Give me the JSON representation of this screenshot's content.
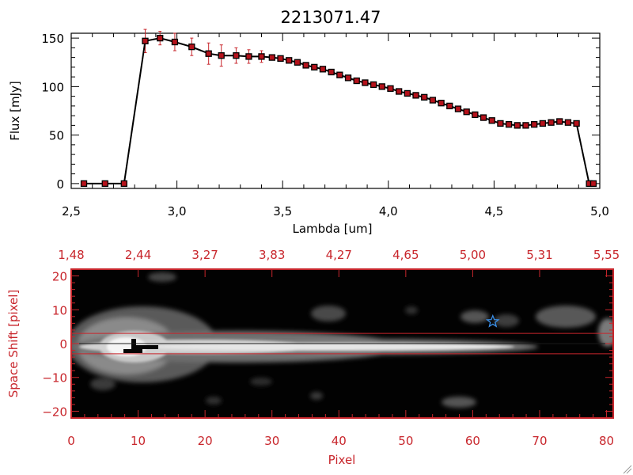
{
  "colors": {
    "axis_red": "#c8262c",
    "point": "#b5121b",
    "line": "#000000",
    "star": "#3a8ee6"
  },
  "chart_data": [
    {
      "type": "line",
      "title": "2213071.47",
      "xlabel": "Lambda [um]",
      "ylabel": "Flux [mJy]",
      "xlim": [
        2.5,
        5.0
      ],
      "ylim": [
        -5,
        155
      ],
      "xticks": [
        2.5,
        3.0,
        3.5,
        4.0,
        4.5,
        5.0
      ],
      "xtick_labels": [
        "2,5",
        "3,0",
        "3,5",
        "4,0",
        "4,5",
        "5,0"
      ],
      "yticks": [
        0,
        50,
        100,
        150
      ],
      "ytick_labels": [
        "0",
        "50",
        "100",
        "150"
      ],
      "grid": false,
      "series": [
        {
          "x": [
            2.56,
            2.66,
            2.75,
            2.85,
            2.92,
            2.99,
            3.07,
            3.15,
            3.21,
            3.28,
            3.34,
            3.4,
            3.45,
            3.49,
            3.53,
            3.57,
            3.61,
            3.65,
            3.69,
            3.73,
            3.77,
            3.81,
            3.85,
            3.89,
            3.93,
            3.97,
            4.01,
            4.05,
            4.09,
            4.13,
            4.17,
            4.21,
            4.25,
            4.29,
            4.33,
            4.37,
            4.41,
            4.45,
            4.49,
            4.53,
            4.57,
            4.61,
            4.65,
            4.69,
            4.73,
            4.77,
            4.81,
            4.85,
            4.89,
            4.95,
            4.97
          ],
          "y": [
            0,
            0,
            0,
            147,
            150,
            146,
            141,
            134,
            132,
            132,
            131,
            131,
            130,
            129,
            127,
            125,
            122,
            120,
            118,
            115,
            112,
            109,
            106,
            104,
            102,
            100,
            98,
            95,
            93,
            91,
            89,
            86,
            83,
            80,
            77,
            74,
            71,
            68,
            65,
            62,
            61,
            60,
            60,
            61,
            62,
            63,
            64,
            63,
            62,
            0,
            0
          ],
          "yerr": [
            0,
            0,
            0,
            12,
            7,
            9,
            9,
            11,
            11,
            8,
            7,
            6,
            2,
            2,
            2,
            2,
            2,
            2,
            2,
            2,
            2,
            2,
            2,
            2,
            2,
            2,
            2,
            2,
            2,
            2,
            2,
            2,
            2,
            2,
            2,
            2,
            2,
            2,
            2,
            2,
            2,
            2,
            2,
            2,
            2,
            2,
            2,
            2,
            2,
            0,
            0
          ]
        }
      ]
    },
    {
      "type": "heatmap",
      "xlabel": "Pixel",
      "ylabel": "Space Shift [pixel]",
      "xlim": [
        0,
        81
      ],
      "ylim": [
        -22,
        22
      ],
      "xticks": [
        0,
        10,
        20,
        30,
        40,
        50,
        60,
        70,
        80
      ],
      "xtick_labels": [
        "0",
        "10",
        "20",
        "30",
        "40",
        "50",
        "60",
        "70",
        "80"
      ],
      "yticks": [
        -20,
        -10,
        0,
        10,
        20
      ],
      "ytick_labels": [
        "−20",
        "−10",
        "0",
        "10",
        "20"
      ],
      "top_axis_ticks": [
        0,
        10,
        20,
        30,
        40,
        50,
        60,
        70,
        80
      ],
      "top_axis_labels": [
        "1,48",
        "2,44",
        "3,27",
        "3,83",
        "4,27",
        "4,65",
        "5,00",
        "5,31",
        "5,55"
      ],
      "extraction_aperture": [
        -3,
        3
      ],
      "star_marker": {
        "x": 63,
        "y": 6.5
      }
    }
  ]
}
